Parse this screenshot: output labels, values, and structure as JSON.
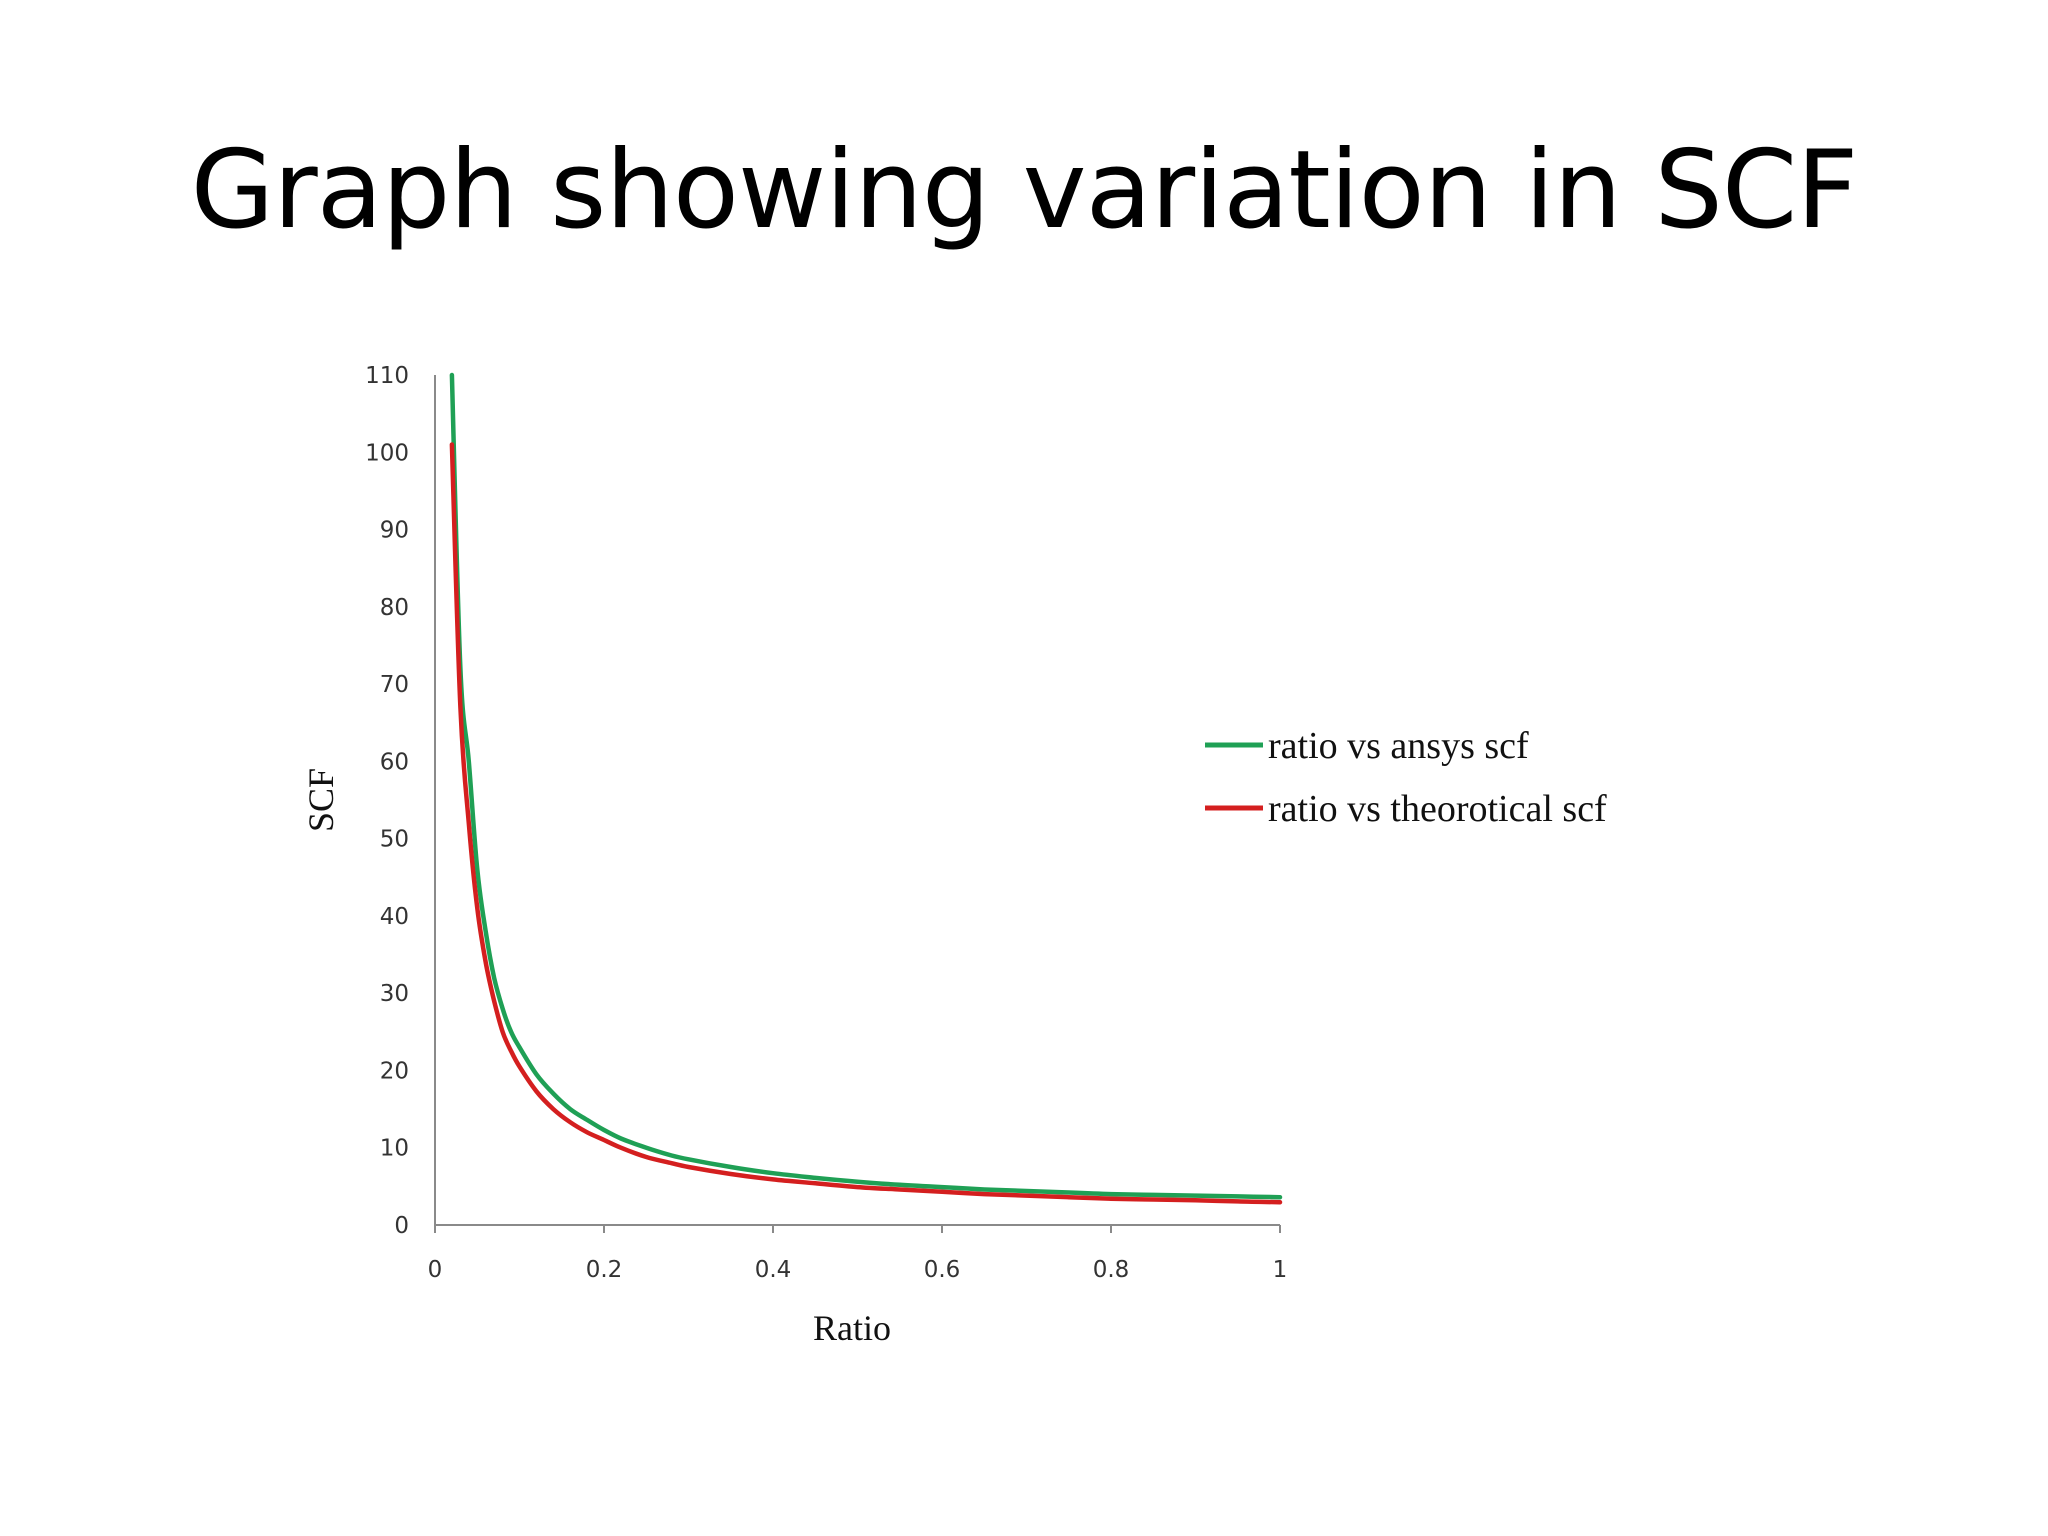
{
  "slide": {
    "title": "Graph showing variation in SCF"
  },
  "chart_data": {
    "type": "line",
    "xlabel": "Ratio",
    "ylabel": "SCF",
    "xlim": [
      0,
      1
    ],
    "ylim": [
      0,
      110
    ],
    "x_ticks": [
      "0",
      "0.2",
      "0.4",
      "0.6",
      "0.8",
      "1"
    ],
    "y_ticks": [
      "0",
      "10",
      "20",
      "30",
      "40",
      "50",
      "60",
      "70",
      "80",
      "90",
      "100",
      "110"
    ],
    "grid": false,
    "legend_position": "right",
    "series": [
      {
        "name": "ratio vs ansys scf",
        "color": "#1fa055",
        "x": [
          0.02,
          0.03,
          0.04,
          0.05,
          0.06,
          0.07,
          0.08,
          0.09,
          0.1,
          0.12,
          0.14,
          0.16,
          0.18,
          0.2,
          0.22,
          0.25,
          0.28,
          0.3,
          0.35,
          0.4,
          0.45,
          0.5,
          0.55,
          0.6,
          0.65,
          0.7,
          0.75,
          0.8,
          0.85,
          0.9,
          0.95,
          1.0
        ],
        "y": [
          110,
          72,
          60,
          46,
          38,
          32,
          28,
          25,
          23,
          19.5,
          17,
          15,
          13.6,
          12.3,
          11.2,
          10,
          9,
          8.5,
          7.5,
          6.7,
          6.1,
          5.6,
          5.2,
          4.9,
          4.6,
          4.4,
          4.2,
          4.0,
          3.9,
          3.8,
          3.7,
          3.6
        ]
      },
      {
        "name": "ratio vs theorotical scf",
        "color": "#d41f1f",
        "x": [
          0.02,
          0.03,
          0.04,
          0.05,
          0.06,
          0.07,
          0.08,
          0.09,
          0.1,
          0.12,
          0.14,
          0.16,
          0.18,
          0.2,
          0.22,
          0.25,
          0.28,
          0.3,
          0.35,
          0.4,
          0.45,
          0.5,
          0.55,
          0.6,
          0.65,
          0.7,
          0.75,
          0.8,
          0.85,
          0.9,
          0.95,
          1.0
        ],
        "y": [
          101,
          67,
          52,
          41,
          34,
          29,
          25,
          22.5,
          20.5,
          17.3,
          15,
          13.3,
          12,
          11,
          10,
          8.8,
          8,
          7.5,
          6.6,
          5.9,
          5.4,
          4.9,
          4.6,
          4.3,
          4.0,
          3.8,
          3.6,
          3.4,
          3.3,
          3.2,
          3.05,
          2.95
        ]
      }
    ]
  }
}
